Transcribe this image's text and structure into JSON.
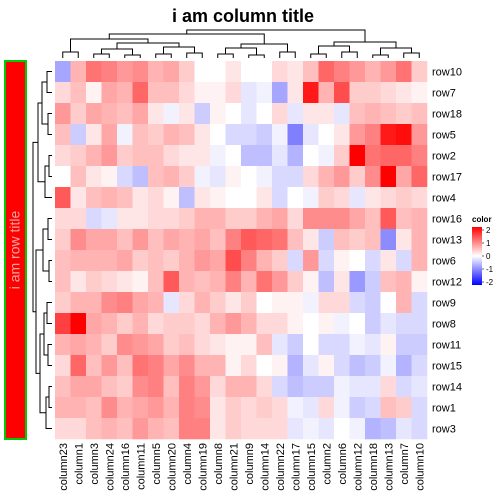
{
  "chart_data": {
    "type": "heatmap",
    "title": "i am column title",
    "row_title": "i am row title",
    "legend_title": "color",
    "legend_ticks": [
      "2",
      "1",
      "0",
      "-1",
      "-2"
    ],
    "colors": {
      "low": "#0000ff",
      "mid": "#ffffff",
      "high": "#ff0000",
      "row_title_fill": "#ff0000",
      "row_title_border": "#00cc00"
    },
    "range": [
      -2,
      2
    ],
    "rows": [
      "row10",
      "row7",
      "row18",
      "row5",
      "row2",
      "row17",
      "row4",
      "row16",
      "row13",
      "row6",
      "row12",
      "row9",
      "row8",
      "row11",
      "row15",
      "row14",
      "row1",
      "row3"
    ],
    "columns": [
      "column23",
      "column1",
      "column3",
      "column24",
      "column16",
      "column11",
      "column5",
      "column20",
      "column4",
      "column19",
      "column8",
      "column21",
      "column9",
      "column14",
      "column22",
      "column17",
      "column15",
      "column2",
      "column6",
      "column12",
      "column18",
      "column13",
      "column7",
      "column10"
    ],
    "values": [
      [
        -0.7,
        0.6,
        1.1,
        1.0,
        0.8,
        0.9,
        0.6,
        0.7,
        0.4,
        0.0,
        0.0,
        0.2,
        0.0,
        0.0,
        0.3,
        0.2,
        0.5,
        1.2,
        1.0,
        0.8,
        0.6,
        0.8,
        1.1,
        0.4
      ],
      [
        0.3,
        0.5,
        0.1,
        0.7,
        0.6,
        1.2,
        0.5,
        0.5,
        0.3,
        0.1,
        0.1,
        0.3,
        -0.2,
        -0.1,
        -0.7,
        0.2,
        1.8,
        0.6,
        1.4,
        0.4,
        0.4,
        0.3,
        0.2,
        0.1
      ],
      [
        0.8,
        0.4,
        0.7,
        0.6,
        0.5,
        0.7,
        0.2,
        -0.1,
        0.2,
        -0.4,
        0.1,
        0.0,
        -0.2,
        0.0,
        0.3,
        -0.2,
        0.2,
        0.2,
        -0.2,
        0.5,
        0.6,
        0.5,
        0.4,
        0.5
      ],
      [
        0.5,
        -0.4,
        0.2,
        0.7,
        -0.1,
        0.5,
        0.4,
        0.6,
        0.5,
        0.2,
        0.0,
        -0.3,
        -0.3,
        -0.4,
        -0.1,
        -1.0,
        -0.2,
        0.0,
        0.2,
        0.8,
        1.0,
        1.8,
        1.9,
        0.8
      ],
      [
        0.3,
        0.4,
        0.6,
        0.8,
        0.4,
        0.5,
        0.5,
        0.3,
        0.2,
        0.2,
        -0.1,
        0.0,
        -0.5,
        -0.5,
        -0.2,
        -0.6,
        0.0,
        -0.1,
        0.4,
        2.0,
        1.1,
        1.2,
        1.2,
        1.0
      ],
      [
        0.0,
        0.5,
        0.2,
        0.1,
        -0.3,
        -0.5,
        0.5,
        0.6,
        0.4,
        -0.1,
        -0.2,
        0.1,
        0.0,
        -0.1,
        -0.3,
        -0.3,
        0.3,
        0.6,
        0.8,
        0.4,
        0.9,
        2.0,
        0.7,
        1.2
      ],
      [
        1.3,
        0.2,
        0.5,
        0.6,
        0.5,
        0.2,
        0.3,
        0.1,
        -0.5,
        0.2,
        0.1,
        0.0,
        0.0,
        0.2,
        -0.3,
        0.0,
        -0.1,
        0.4,
        0.3,
        -0.2,
        0.2,
        0.3,
        0.4,
        0.3
      ],
      [
        0.3,
        0.3,
        -0.3,
        -0.2,
        0.2,
        0.2,
        0.3,
        0.3,
        0.4,
        0.6,
        0.6,
        0.4,
        0.4,
        0.6,
        0.7,
        0.3,
        0.9,
        0.9,
        0.9,
        0.7,
        0.5,
        1.3,
        0.5,
        0.6
      ],
      [
        0.4,
        0.9,
        0.7,
        0.7,
        0.5,
        0.8,
        0.5,
        0.7,
        0.6,
        0.7,
        0.5,
        1.0,
        1.3,
        1.2,
        1.1,
        0.5,
        0.2,
        -0.4,
        0.5,
        0.4,
        0.5,
        -0.9,
        0.2,
        0.6
      ],
      [
        0.5,
        0.6,
        0.6,
        0.6,
        0.7,
        0.4,
        0.5,
        0.4,
        0.6,
        0.8,
        0.7,
        1.4,
        1.0,
        0.6,
        0.4,
        -0.3,
        0.8,
        -0.3,
        0.1,
        0.0,
        -0.3,
        0.2,
        -0.3,
        0.6
      ],
      [
        0.5,
        0.2,
        0.4,
        0.3,
        0.2,
        0.1,
        0.5,
        1.3,
        0.6,
        0.5,
        0.6,
        1.0,
        0.6,
        1.1,
        0.8,
        0.4,
        0.1,
        -0.5,
        0.2,
        -0.8,
        -0.4,
        0.5,
        0.6,
        0.1
      ],
      [
        0.4,
        0.6,
        0.6,
        0.9,
        1.0,
        0.7,
        0.6,
        -0.2,
        0.3,
        0.6,
        0.4,
        0.2,
        0.4,
        0.0,
        0.1,
        0.1,
        -0.1,
        0.3,
        0.3,
        -0.3,
        -0.4,
        0.0,
        0.6,
        -0.3
      ],
      [
        1.5,
        2.2,
        0.7,
        0.6,
        0.4,
        0.6,
        0.3,
        0.4,
        0.4,
        0.3,
        0.6,
        0.8,
        0.6,
        0.3,
        0.3,
        0.1,
        0.0,
        0.1,
        -0.1,
        0.0,
        -0.4,
        -0.2,
        -0.3,
        -0.3
      ],
      [
        0.6,
        0.7,
        0.6,
        0.4,
        0.9,
        0.8,
        0.7,
        0.4,
        0.5,
        0.3,
        0.2,
        0.1,
        0.1,
        0.5,
        -0.2,
        -0.4,
        0.0,
        -0.3,
        -0.3,
        -0.1,
        -0.2,
        0.1,
        -0.4,
        -0.4
      ],
      [
        0.3,
        1.2,
        0.5,
        0.8,
        0.5,
        1.1,
        1.0,
        0.7,
        0.9,
        0.6,
        0.6,
        0.1,
        0.3,
        0.0,
        0.1,
        -0.6,
        -0.2,
        0.1,
        -0.3,
        -0.5,
        -0.4,
        -0.1,
        -0.6,
        -0.3
      ],
      [
        0.5,
        0.7,
        0.7,
        0.5,
        0.4,
        0.9,
        1.0,
        0.5,
        1.0,
        0.8,
        0.3,
        0.6,
        0.6,
        0.3,
        -0.3,
        -0.5,
        -0.4,
        -0.4,
        -0.1,
        -0.2,
        -0.2,
        0.3,
        -0.3,
        -0.2
      ],
      [
        0.6,
        0.6,
        0.5,
        0.9,
        0.6,
        0.7,
        0.8,
        0.6,
        1.0,
        0.9,
        0.2,
        0.4,
        0.3,
        0.4,
        0.3,
        -0.1,
        -0.2,
        0.3,
        -0.1,
        -0.4,
        -0.3,
        0.5,
        0.4,
        -0.3
      ],
      [
        0.3,
        0.3,
        0.5,
        0.6,
        0.5,
        0.8,
        0.6,
        0.5,
        1.0,
        1.0,
        0.2,
        0.4,
        0.3,
        0.3,
        0.3,
        -0.2,
        -0.1,
        -0.2,
        0.0,
        -0.1,
        -0.6,
        -0.5,
        -0.2,
        -0.3
      ]
    ]
  }
}
